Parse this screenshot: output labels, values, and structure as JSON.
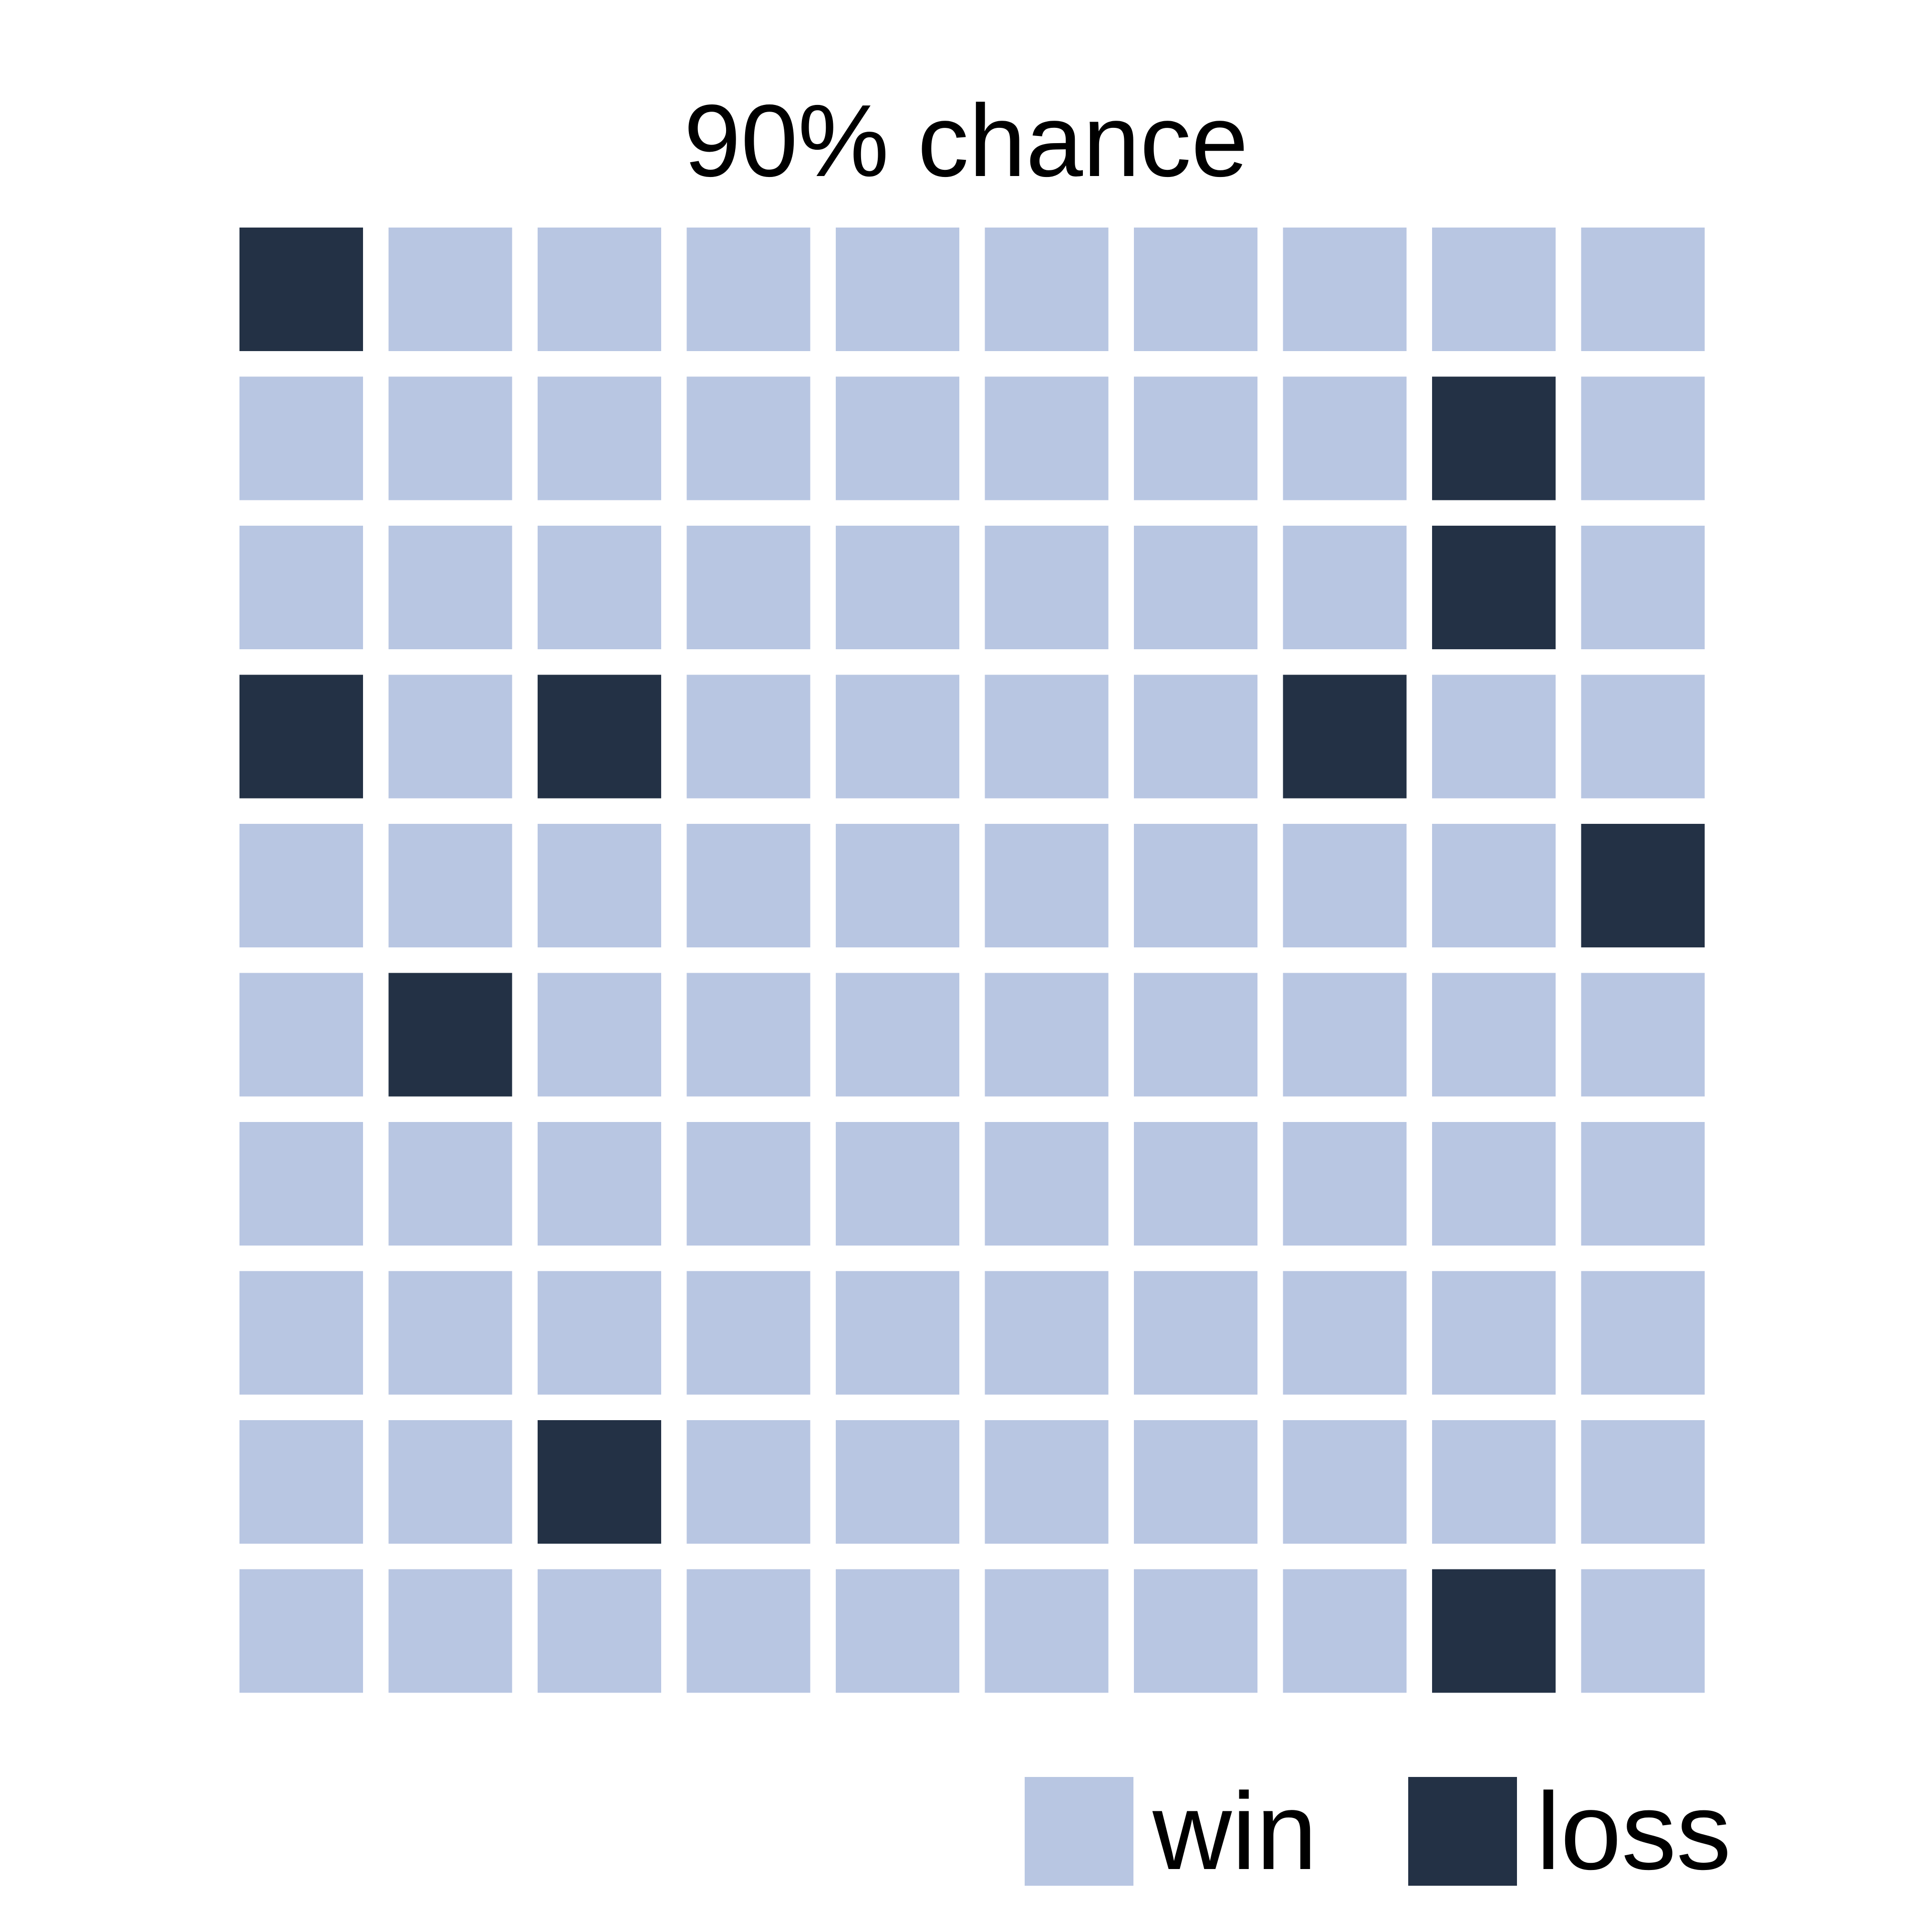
{
  "chart_data": {
    "type": "waffle",
    "title": "90% chance",
    "rows": 10,
    "columns": 10,
    "categories": [
      "win",
      "loss"
    ],
    "colors": {
      "win": "#b8c6e2",
      "loss": "#233145"
    },
    "values": {
      "win": 90,
      "loss": 10
    },
    "grid": [
      [
        "loss",
        "win",
        "win",
        "win",
        "win",
        "win",
        "win",
        "win",
        "win",
        "win"
      ],
      [
        "win",
        "win",
        "win",
        "win",
        "win",
        "win",
        "win",
        "win",
        "loss",
        "win"
      ],
      [
        "win",
        "win",
        "win",
        "win",
        "win",
        "win",
        "win",
        "win",
        "loss",
        "win"
      ],
      [
        "loss",
        "win",
        "loss",
        "win",
        "win",
        "win",
        "win",
        "loss",
        "win",
        "win"
      ],
      [
        "win",
        "win",
        "win",
        "win",
        "win",
        "win",
        "win",
        "win",
        "win",
        "loss"
      ],
      [
        "win",
        "loss",
        "win",
        "win",
        "win",
        "win",
        "win",
        "win",
        "win",
        "win"
      ],
      [
        "win",
        "win",
        "win",
        "win",
        "win",
        "win",
        "win",
        "win",
        "win",
        "win"
      ],
      [
        "win",
        "win",
        "win",
        "win",
        "win",
        "win",
        "win",
        "win",
        "win",
        "win"
      ],
      [
        "win",
        "win",
        "loss",
        "win",
        "win",
        "win",
        "win",
        "win",
        "win",
        "win"
      ],
      [
        "win",
        "win",
        "win",
        "win",
        "win",
        "win",
        "win",
        "win",
        "loss",
        "win"
      ]
    ],
    "legend": {
      "placement": "bottom-right",
      "items": [
        {
          "label": "win",
          "color": "#b8c6e2"
        },
        {
          "label": "loss",
          "color": "#233145"
        }
      ]
    },
    "grid_lines": false
  }
}
